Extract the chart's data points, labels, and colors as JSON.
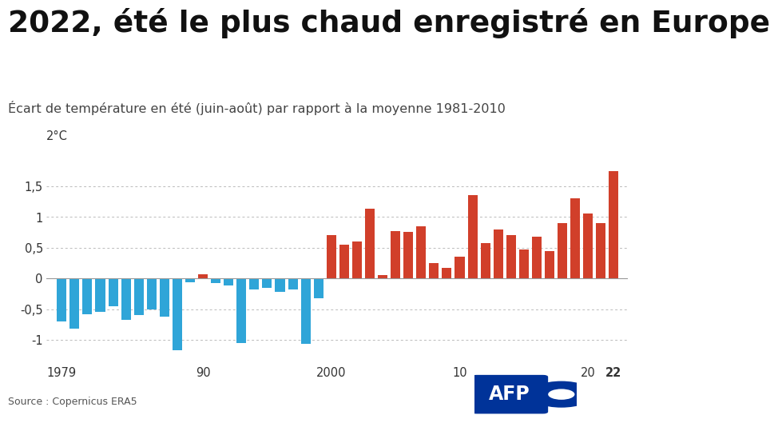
{
  "title": "2022, été le plus chaud enregistré en Europe",
  "subtitle": "Écart de température en été (juin-août) par rapport à la moyenne 1981-2010",
  "source": "Source : Copernicus ERA5",
  "background_color": "#ffffff",
  "title_fontsize": 27,
  "subtitle_fontsize": 11.5,
  "years": [
    1979,
    1980,
    1981,
    1982,
    1983,
    1984,
    1985,
    1986,
    1987,
    1988,
    1989,
    1990,
    1991,
    1992,
    1993,
    1994,
    1995,
    1996,
    1997,
    1998,
    1999,
    2000,
    2001,
    2002,
    2003,
    2004,
    2005,
    2006,
    2007,
    2008,
    2009,
    2010,
    2011,
    2012,
    2013,
    2014,
    2015,
    2016,
    2017,
    2018,
    2019,
    2020,
    2021,
    2022
  ],
  "values": [
    -0.7,
    -0.82,
    -0.58,
    -0.55,
    -0.45,
    -0.68,
    -0.6,
    -0.5,
    -0.63,
    -1.17,
    -0.07,
    0.07,
    -0.08,
    -0.12,
    -1.05,
    -0.18,
    -0.15,
    -0.22,
    -0.18,
    -1.07,
    -0.33,
    0.7,
    0.55,
    0.6,
    1.13,
    0.05,
    0.77,
    0.75,
    0.85,
    0.25,
    0.17,
    0.35,
    1.35,
    0.57,
    0.8,
    0.7,
    0.47,
    0.68,
    0.45,
    0.9,
    1.3,
    1.05,
    0.9,
    1.75
  ],
  "color_positive": "#d13f2a",
  "color_negative": "#2fa5d8",
  "ylim_min": -1.35,
  "ylim_max": 2.15,
  "yticks": [
    -1.0,
    -0.5,
    0.0,
    0.5,
    1.0,
    1.5
  ],
  "xtick_labels": [
    "1979",
    "90",
    "2000",
    "10",
    "20",
    "22"
  ],
  "xtick_positions": [
    1979,
    1990,
    2000,
    2010,
    2020,
    2022
  ],
  "afp_color": "#003399"
}
